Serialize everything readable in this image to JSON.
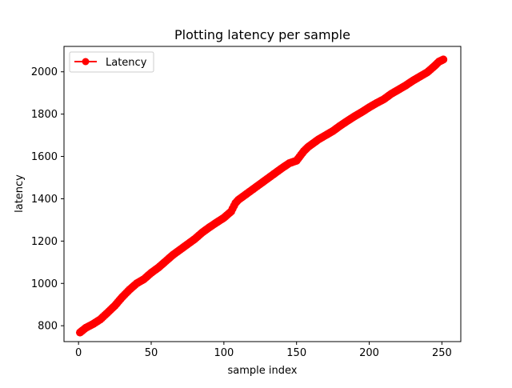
{
  "colors": {
    "line": "#ff0000",
    "marker": "#ff0000",
    "axes": "#000000",
    "background": "#ffffff",
    "legend_border": "#cccccc"
  },
  "chart_data": {
    "type": "line",
    "title": "Plotting latency per sample",
    "xlabel": "sample index",
    "ylabel": "latency",
    "xlim": [
      -10,
      263
    ],
    "ylim": [
      725,
      2120
    ],
    "xticks": [
      0,
      50,
      100,
      150,
      200,
      250
    ],
    "yticks": [
      800,
      1000,
      1200,
      1400,
      1600,
      1800,
      2000
    ],
    "grid": false,
    "legend": {
      "location": "upper left",
      "entries": [
        "Latency"
      ]
    },
    "marker": "circle",
    "series": [
      {
        "name": "Latency",
        "keypoints_x": [
          1,
          5,
          10,
          15,
          20,
          25,
          30,
          35,
          40,
          45,
          50,
          55,
          60,
          65,
          70,
          75,
          80,
          85,
          90,
          95,
          100,
          105,
          108,
          110,
          115,
          120,
          125,
          130,
          135,
          140,
          145,
          150,
          155,
          158,
          162,
          165,
          170,
          175,
          180,
          185,
          190,
          195,
          200,
          205,
          210,
          215,
          220,
          225,
          230,
          235,
          240,
          245,
          248,
          251
        ],
        "keypoints_y": [
          768,
          790,
          808,
          830,
          862,
          895,
          935,
          970,
          1000,
          1020,
          1050,
          1075,
          1105,
          1135,
          1160,
          1185,
          1210,
          1240,
          1265,
          1288,
          1310,
          1340,
          1380,
          1395,
          1420,
          1445,
          1470,
          1495,
          1520,
          1545,
          1568,
          1580,
          1625,
          1645,
          1665,
          1680,
          1700,
          1720,
          1745,
          1768,
          1790,
          1810,
          1832,
          1852,
          1870,
          1895,
          1915,
          1935,
          1958,
          1978,
          1998,
          2028,
          2048,
          2058
        ]
      }
    ],
    "x": [
      1,
      251
    ]
  }
}
